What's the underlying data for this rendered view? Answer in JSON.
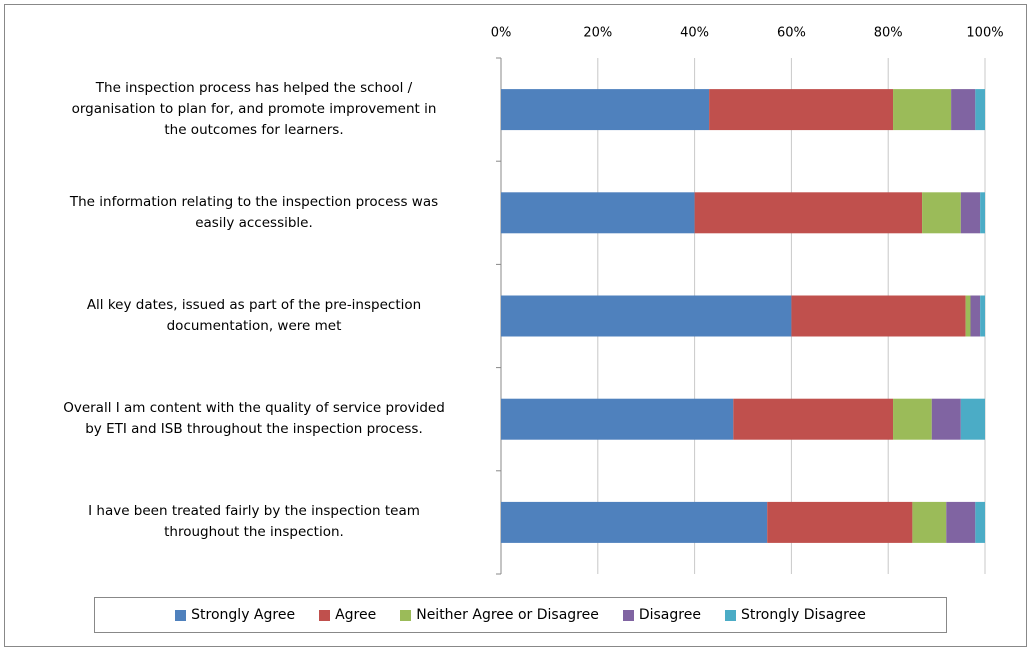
{
  "chart_data": {
    "type": "bar",
    "orientation": "horizontal",
    "stacked": true,
    "categories": [
      "The inspection process has helped the school /\norganisation to plan for, and promote improvement in\nthe outcomes for learners.",
      "The information  relating to the inspection process was\neasily accessible.",
      "All key dates, issued as part of the pre-inspection\ndocumentation, were met",
      "Overall I am content with the quality of service provided\nby ETI and ISB throughout the inspection process.",
      "I have been treated fairly by the inspection team\nthroughout the inspection."
    ],
    "series": [
      {
        "name": "Strongly Agree",
        "color": "#4f81bd",
        "values": [
          43,
          40,
          60,
          48,
          55
        ]
      },
      {
        "name": "Agree",
        "color": "#c0504d",
        "values": [
          38,
          47,
          36,
          33,
          30
        ]
      },
      {
        "name": "Neither Agree or Disagree",
        "color": "#9bbb59",
        "values": [
          12,
          8,
          1,
          8,
          7
        ]
      },
      {
        "name": "Disagree",
        "color": "#8064a2",
        "values": [
          5,
          4,
          2,
          6,
          6
        ]
      },
      {
        "name": "Strongly Disagree",
        "color": "#4bacc6",
        "values": [
          2,
          1,
          1,
          5,
          2
        ]
      }
    ],
    "xlim": [
      0,
      100
    ],
    "xticks": [
      {
        "value": 0,
        "label": "0%"
      },
      {
        "value": 20,
        "label": "20%"
      },
      {
        "value": 40,
        "label": "40%"
      },
      {
        "value": 60,
        "label": "60%"
      },
      {
        "value": 80,
        "label": "80%"
      },
      {
        "value": 100,
        "label": "100%"
      }
    ],
    "grid": true,
    "legend": "bottom"
  }
}
